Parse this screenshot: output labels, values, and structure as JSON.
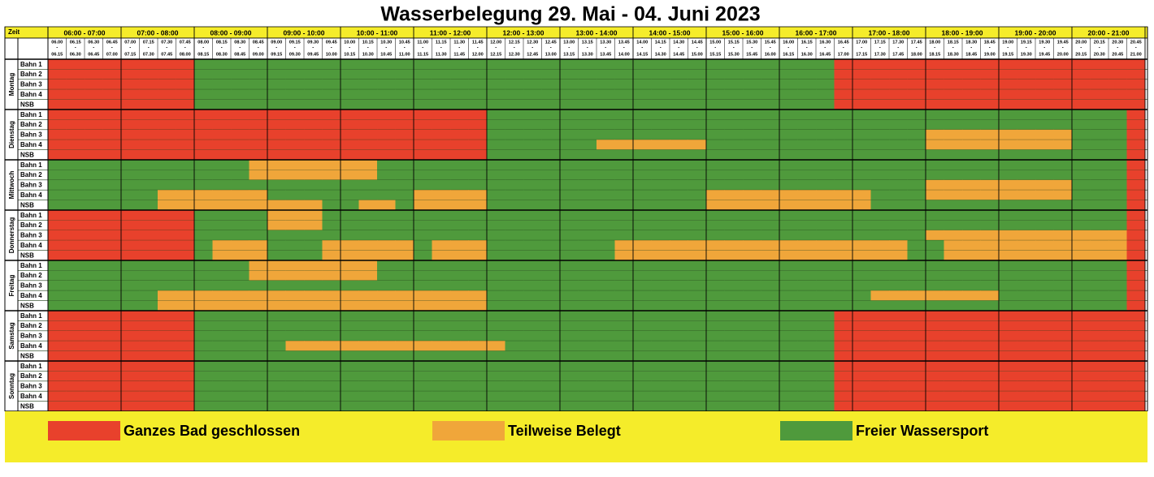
{
  "header": {
    "title": "Wasserbelegung 29. Mai - 04. Juni 2023",
    "time_label": "Zeit",
    "separator": "-"
  },
  "hours": [
    {
      "label": "06:00 - 07:00",
      "slots": [
        [
          "06.00",
          "06.15"
        ],
        [
          "06.15",
          "06.30"
        ],
        [
          "06.30",
          "06.45"
        ],
        [
          "06.45",
          "07.00"
        ]
      ]
    },
    {
      "label": "07:00 - 08:00",
      "slots": [
        [
          "07.00",
          "07.15"
        ],
        [
          "07.15",
          "07.30"
        ],
        [
          "07.30",
          "07.45"
        ],
        [
          "07.45",
          "08.00"
        ]
      ]
    },
    {
      "label": "08:00 - 09:00",
      "slots": [
        [
          "08.00",
          "08.15"
        ],
        [
          "08.15",
          "08.30"
        ],
        [
          "08.30",
          "08.45"
        ],
        [
          "08.45",
          "09.00"
        ]
      ]
    },
    {
      "label": "09:00 - 10:00",
      "slots": [
        [
          "09.00",
          "09.15"
        ],
        [
          "09.15",
          "09.30"
        ],
        [
          "09.30",
          "09.45"
        ],
        [
          "09.45",
          "10.00"
        ]
      ]
    },
    {
      "label": "10:00 - 11:00",
      "slots": [
        [
          "10.00",
          "10.15"
        ],
        [
          "10.15",
          "10.30"
        ],
        [
          "10.30",
          "10.45"
        ],
        [
          "10.45",
          "11.00"
        ]
      ]
    },
    {
      "label": "11:00 - 12:00",
      "slots": [
        [
          "11.00",
          "11.15"
        ],
        [
          "11.15",
          "11.30"
        ],
        [
          "11.30",
          "11.45"
        ],
        [
          "11.45",
          "12.00"
        ]
      ]
    },
    {
      "label": "12:00 - 13:00",
      "slots": [
        [
          "12.00",
          "12.15"
        ],
        [
          "12.15",
          "12.30"
        ],
        [
          "12.30",
          "12.45"
        ],
        [
          "12.45",
          "13.00"
        ]
      ]
    },
    {
      "label": "13:00 - 14:00",
      "slots": [
        [
          "13.00",
          "13.15"
        ],
        [
          "13.15",
          "13.30"
        ],
        [
          "13.30",
          "13.45"
        ],
        [
          "13.45",
          "14.00"
        ]
      ]
    },
    {
      "label": "14:00 - 15:00",
      "slots": [
        [
          "14.00",
          "14.15"
        ],
        [
          "14.15",
          "14.30"
        ],
        [
          "14.30",
          "14.45"
        ],
        [
          "14.45",
          "15.00"
        ]
      ]
    },
    {
      "label": "15:00 - 16:00",
      "slots": [
        [
          "15.00",
          "15.15"
        ],
        [
          "15.15",
          "15.30"
        ],
        [
          "15.30",
          "15.45"
        ],
        [
          "15.45",
          "16.00"
        ]
      ]
    },
    {
      "label": "16:00 - 17:00",
      "slots": [
        [
          "16.00",
          "16.15"
        ],
        [
          "16.15",
          "16.30"
        ],
        [
          "16.30",
          "16.45"
        ],
        [
          "16.45",
          "17.00"
        ]
      ]
    },
    {
      "label": "17:00 - 18:00",
      "slots": [
        [
          "17.00",
          "17.15"
        ],
        [
          "17.15",
          "17.30"
        ],
        [
          "17.30",
          "17.45"
        ],
        [
          "17.45",
          "18.00"
        ]
      ]
    },
    {
      "label": "18:00 - 19:00",
      "slots": [
        [
          "18.00",
          "18.15"
        ],
        [
          "18.15",
          "18.30"
        ],
        [
          "18.30",
          "18.45"
        ],
        [
          "18.45",
          "19.00"
        ]
      ]
    },
    {
      "label": "19:00 - 20:00",
      "slots": [
        [
          "19.00",
          "19.15"
        ],
        [
          "19.15",
          "19.30"
        ],
        [
          "19.30",
          "19.45"
        ],
        [
          "19.45",
          "20.00"
        ]
      ]
    },
    {
      "label": "20:00 - 21:00",
      "slots": [
        [
          "20.00",
          "20.15"
        ],
        [
          "20.15",
          "20.30"
        ],
        [
          "20.30",
          "20.45"
        ],
        [
          "20.45",
          "21.00"
        ]
      ]
    }
  ],
  "lanes": [
    "Bahn 1",
    "Bahn 2",
    "Bahn 3",
    "Bahn 4",
    "NSB"
  ],
  "legend": [
    {
      "code": "R",
      "label": "Ganzes Bad geschlossen",
      "color": "#e8412c"
    },
    {
      "code": "O",
      "label": "Teilweise Belegt",
      "color": "#f0a63a"
    },
    {
      "code": "G",
      "label": "Freier Wassersport",
      "color": "#4f9a3c"
    }
  ],
  "days": [
    {
      "name": "Montag",
      "lanes": [
        [
          "RRRR",
          "RRRR",
          "GGGG",
          "GGGG",
          "GGGG",
          "GGGG",
          "GGGG",
          "GGGG",
          "GGGG",
          "GGGG",
          "GGGR",
          "RRRR",
          "RRRR",
          "RRRR",
          "RRRR"
        ],
        [
          "RRRR",
          "RRRR",
          "GGGG",
          "GGGG",
          "GGGG",
          "GGGG",
          "GGGG",
          "GGGG",
          "GGGG",
          "GGGG",
          "GGGR",
          "RRRR",
          "RRRR",
          "RRRR",
          "RRRR"
        ],
        [
          "RRRR",
          "RRRR",
          "GGGG",
          "GGGG",
          "GGGG",
          "GGGG",
          "GGGG",
          "GGGG",
          "GGGG",
          "GGGG",
          "GGGR",
          "RRRR",
          "RRRR",
          "RRRR",
          "RRRR"
        ],
        [
          "RRRR",
          "RRRR",
          "GGGG",
          "GGGG",
          "GGGG",
          "GGGG",
          "GGGG",
          "GGGG",
          "GGGG",
          "GGGG",
          "GGGR",
          "RRRR",
          "RRRR",
          "RRRR",
          "RRRR"
        ],
        [
          "RRRR",
          "RRRR",
          "GGGG",
          "GGGG",
          "GGGG",
          "GGGG",
          "GGGG",
          "GGGG",
          "GGGG",
          "GGGG",
          "GGGR",
          "RRRR",
          "RRRR",
          "RRRR",
          "RRRR"
        ]
      ]
    },
    {
      "name": "Dienstag",
      "lanes": [
        [
          "RRRR",
          "RRRR",
          "RRRR",
          "RRRR",
          "RRRR",
          "RRRR",
          "GGGG",
          "GGGG",
          "GGGG",
          "GGGG",
          "GGGG",
          "GGGG",
          "GGGG",
          "GGGG",
          "GGGR"
        ],
        [
          "RRRR",
          "RRRR",
          "RRRR",
          "RRRR",
          "RRRR",
          "RRRR",
          "GGGG",
          "GGGG",
          "GGGG",
          "GGGG",
          "GGGG",
          "GGGG",
          "GGGG",
          "GGGG",
          "GGGR"
        ],
        [
          "RRRR",
          "RRRR",
          "RRRR",
          "RRRR",
          "RRRR",
          "RRRR",
          "GGGG",
          "GGGG",
          "GGGG",
          "GGGG",
          "GGGG",
          "GGGG",
          "OOOO",
          "OOOO",
          "GGGR"
        ],
        [
          "RRRR",
          "RRRR",
          "RRRR",
          "RRRR",
          "RRRR",
          "RRRR",
          "GGGG",
          "GGOO",
          "OOOO",
          "GGGG",
          "GGGG",
          "GGGG",
          "OOOO",
          "OOOO",
          "GGGR"
        ],
        [
          "RRRR",
          "RRRR",
          "RRRR",
          "RRRR",
          "RRRR",
          "RRRR",
          "GGGG",
          "GGGG",
          "GGGG",
          "GGGG",
          "GGGG",
          "GGGG",
          "GGGG",
          "GGGG",
          "GGGR"
        ]
      ]
    },
    {
      "name": "Mittwoch",
      "lanes": [
        [
          "GGGG",
          "GGGG",
          "GGGO",
          "OOOO",
          "OOGG",
          "GGGG",
          "GGGG",
          "GGGG",
          "GGGG",
          "GGGG",
          "GGGG",
          "GGGG",
          "GGGG",
          "GGGG",
          "GGGR"
        ],
        [
          "GGGG",
          "GGGG",
          "GGGO",
          "OOOO",
          "OOGG",
          "GGGG",
          "GGGG",
          "GGGG",
          "GGGG",
          "GGGG",
          "GGGG",
          "GGGG",
          "GGGG",
          "GGGG",
          "GGGR"
        ],
        [
          "GGGG",
          "GGGG",
          "GGGG",
          "GGGG",
          "GGGG",
          "GGGG",
          "GGGG",
          "GGGG",
          "GGGG",
          "GGGG",
          "GGGG",
          "GGGG",
          "OOOO",
          "OOOO",
          "GGGR"
        ],
        [
          "GGGG",
          "GGOO",
          "OOOO",
          "GGGG",
          "GGGG",
          "OOOO",
          "GGGG",
          "GGGG",
          "GGGG",
          "OOOO",
          "OOOO",
          "OGGG",
          "OOOO",
          "OOOO",
          "GGGR"
        ],
        [
          "GGGG",
          "GGOO",
          "OOOO",
          "OOOG",
          "GOOG",
          "OOOO",
          "GGGG",
          "GGGG",
          "GGGG",
          "OOOO",
          "OOOO",
          "OGGG",
          "GGGG",
          "GGGG",
          "GGGR"
        ]
      ]
    },
    {
      "name": "Donnerstag",
      "lanes": [
        [
          "RRRR",
          "RRRR",
          "GGGG",
          "OOOG",
          "GGGG",
          "GGGG",
          "GGGG",
          "GGGG",
          "GGGG",
          "GGGG",
          "GGGG",
          "GGGG",
          "GGGG",
          "GGGG",
          "GGGR"
        ],
        [
          "RRRR",
          "RRRR",
          "GGGG",
          "OOOG",
          "GGGG",
          "GGGG",
          "GGGG",
          "GGGG",
          "GGGG",
          "GGGG",
          "GGGG",
          "GGGG",
          "GGGG",
          "GGGG",
          "GGGR"
        ],
        [
          "RRRR",
          "RRRR",
          "GGGG",
          "GGGG",
          "GGGG",
          "GGGG",
          "GGGG",
          "GGGG",
          "GGGG",
          "GGGG",
          "GGGG",
          "GGGG",
          "OOOO",
          "OOOO",
          "OOOR"
        ],
        [
          "RRRR",
          "RRRR",
          "GOOO",
          "GGGO",
          "OOOO",
          "GOOO",
          "GGGG",
          "GGGO",
          "OOOO",
          "OOOO",
          "OOOO",
          "OOOG",
          "GOOO",
          "OOOO",
          "OOOR"
        ],
        [
          "RRRR",
          "RRRR",
          "GOOO",
          "GGGO",
          "OOOO",
          "GOOO",
          "GGGG",
          "GGGO",
          "OOOO",
          "OOOO",
          "OOOO",
          "OOOG",
          "GOOO",
          "OOOO",
          "OOOR"
        ]
      ]
    },
    {
      "name": "Freitag",
      "lanes": [
        [
          "GGGG",
          "GGGG",
          "GGGO",
          "OOOO",
          "OOGG",
          "GGGG",
          "GGGG",
          "GGGG",
          "GGGG",
          "GGGG",
          "GGGG",
          "GGGG",
          "GGGG",
          "GGGG",
          "GGGR"
        ],
        [
          "GGGG",
          "GGGG",
          "GGGO",
          "OOOO",
          "OOGG",
          "GGGG",
          "GGGG",
          "GGGG",
          "GGGG",
          "GGGG",
          "GGGG",
          "GGGG",
          "GGGG",
          "GGGG",
          "GGGR"
        ],
        [
          "GGGG",
          "GGGG",
          "GGGG",
          "GGGG",
          "GGGG",
          "GGGG",
          "GGGG",
          "GGGG",
          "GGGG",
          "GGGG",
          "GGGG",
          "GGGG",
          "GGGG",
          "GGGG",
          "GGGR"
        ],
        [
          "GGGG",
          "GGOO",
          "OOOO",
          "OOOO",
          "OOOO",
          "OOOO",
          "GGGG",
          "GGGG",
          "GGGG",
          "GGGG",
          "GGGG",
          "GOOO",
          "OOOO",
          "GGGG",
          "GGGR"
        ],
        [
          "GGGG",
          "GGOO",
          "OOOO",
          "OOOO",
          "OOOO",
          "OOOO",
          "GGGG",
          "GGGG",
          "GGGG",
          "GGGG",
          "GGGG",
          "GGGG",
          "GGGG",
          "GGGG",
          "GGGR"
        ]
      ]
    },
    {
      "name": "Samstag",
      "lanes": [
        [
          "RRRR",
          "RRRR",
          "GGGG",
          "GGGG",
          "GGGG",
          "GGGG",
          "GGGG",
          "GGGG",
          "GGGG",
          "GGGG",
          "GGGR",
          "RRRR",
          "RRRR",
          "RRRR",
          "RRRR"
        ],
        [
          "RRRR",
          "RRRR",
          "GGGG",
          "GGGG",
          "GGGG",
          "GGGG",
          "GGGG",
          "GGGG",
          "GGGG",
          "GGGG",
          "GGGR",
          "RRRR",
          "RRRR",
          "RRRR",
          "RRRR"
        ],
        [
          "RRRR",
          "RRRR",
          "GGGG",
          "GGGG",
          "GGGG",
          "GGGG",
          "GGGG",
          "GGGG",
          "GGGG",
          "GGGG",
          "GGGR",
          "RRRR",
          "RRRR",
          "RRRR",
          "RRRR"
        ],
        [
          "RRRR",
          "RRRR",
          "GGGG",
          "GOOO",
          "OOOO",
          "OOOO",
          "OGGG",
          "GGGG",
          "GGGG",
          "GGGG",
          "GGGR",
          "RRRR",
          "RRRR",
          "RRRR",
          "RRRR"
        ],
        [
          "RRRR",
          "RRRR",
          "GGGG",
          "GGGG",
          "GGGG",
          "GGGG",
          "GGGG",
          "GGGG",
          "GGGG",
          "GGGG",
          "GGGR",
          "RRRR",
          "RRRR",
          "RRRR",
          "RRRR"
        ]
      ]
    },
    {
      "name": "Sonntag",
      "lanes": [
        [
          "RRRR",
          "RRRR",
          "GGGG",
          "GGGG",
          "GGGG",
          "GGGG",
          "GGGG",
          "GGGG",
          "GGGG",
          "GGGG",
          "GGGR",
          "RRRR",
          "RRRR",
          "RRRR",
          "RRRR"
        ],
        [
          "RRRR",
          "RRRR",
          "GGGG",
          "GGGG",
          "GGGG",
          "GGGG",
          "GGGG",
          "GGGG",
          "GGGG",
          "GGGG",
          "GGGR",
          "RRRR",
          "RRRR",
          "RRRR",
          "RRRR"
        ],
        [
          "RRRR",
          "RRRR",
          "GGGG",
          "GGGG",
          "GGGG",
          "GGGG",
          "GGGG",
          "GGGG",
          "GGGG",
          "GGGG",
          "GGGR",
          "RRRR",
          "RRRR",
          "RRRR",
          "RRRR"
        ],
        [
          "RRRR",
          "RRRR",
          "GGGG",
          "GGGG",
          "GGGG",
          "GGGG",
          "GGGG",
          "GGGG",
          "GGGG",
          "GGGG",
          "GGGR",
          "RRRR",
          "RRRR",
          "RRRR",
          "RRRR"
        ],
        [
          "RRRR",
          "RRRR",
          "GGGG",
          "GGGG",
          "GGGG",
          "GGGG",
          "GGGG",
          "GGGG",
          "GGGG",
          "GGGG",
          "GGGR",
          "RRRR",
          "RRRR",
          "RRRR",
          "RRRR"
        ]
      ]
    }
  ]
}
